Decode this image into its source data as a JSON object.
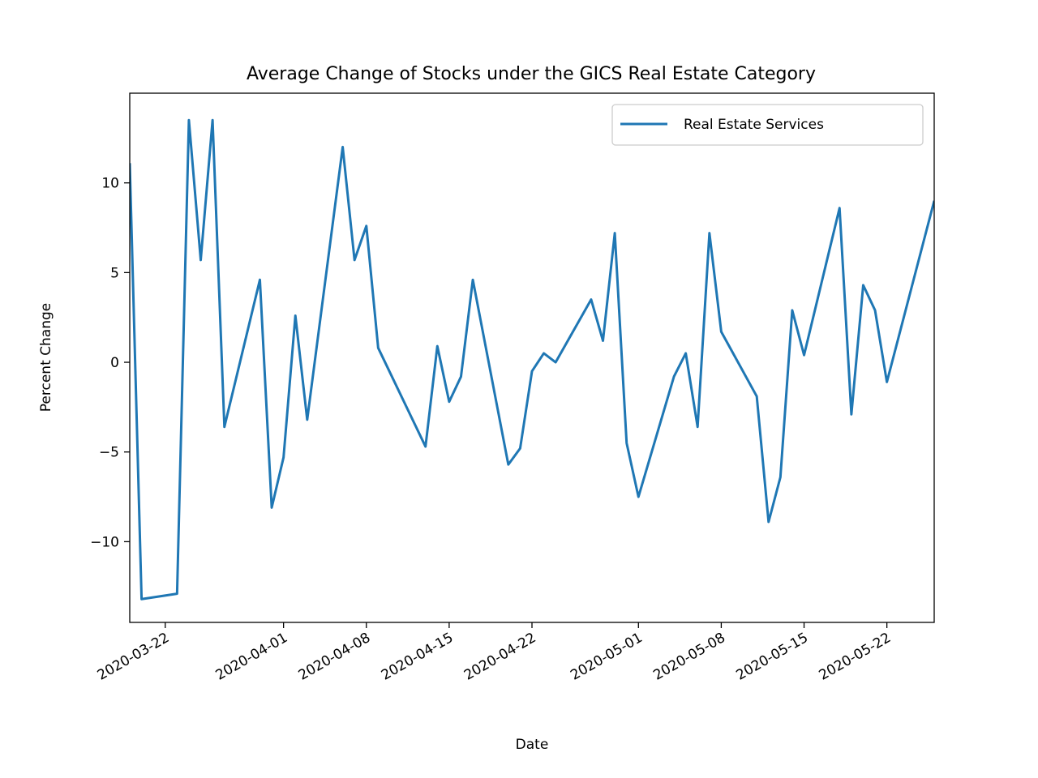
{
  "chart_data": {
    "type": "line",
    "title": "Average Change of Stocks under the GICS Real Estate Category",
    "xlabel": "Date",
    "ylabel": "Percent Change",
    "xlim": [
      "2020-03-19",
      "2020-05-26"
    ],
    "ylim": [
      -14.5,
      15
    ],
    "grid": false,
    "legend_position": "top-right",
    "x_ticks": [
      "2020-03-22",
      "2020-04-01",
      "2020-04-08",
      "2020-04-15",
      "2020-04-22",
      "2020-05-01",
      "2020-05-08",
      "2020-05-15",
      "2020-05-22"
    ],
    "y_ticks": [
      -10,
      -5,
      0,
      5,
      10
    ],
    "y_tick_labels": [
      "−10",
      "−5",
      "0",
      "5",
      "10"
    ],
    "series": [
      {
        "name": "Real Estate Services",
        "color": "#1f77b4",
        "x": [
          "2020-03-19",
          "2020-03-20",
          "2020-03-23",
          "2020-03-24",
          "2020-03-25",
          "2020-03-26",
          "2020-03-27",
          "2020-03-30",
          "2020-03-31",
          "2020-04-01",
          "2020-04-02",
          "2020-04-03",
          "2020-04-06",
          "2020-04-07",
          "2020-04-08",
          "2020-04-09",
          "2020-04-13",
          "2020-04-14",
          "2020-04-15",
          "2020-04-16",
          "2020-04-17",
          "2020-04-20",
          "2020-04-21",
          "2020-04-22",
          "2020-04-23",
          "2020-04-24",
          "2020-04-27",
          "2020-04-28",
          "2020-04-29",
          "2020-04-30",
          "2020-05-01",
          "2020-05-04",
          "2020-05-05",
          "2020-05-06",
          "2020-05-07",
          "2020-05-08",
          "2020-05-11",
          "2020-05-12",
          "2020-05-13",
          "2020-05-14",
          "2020-05-15",
          "2020-05-18",
          "2020-05-19",
          "2020-05-20",
          "2020-05-21",
          "2020-05-22",
          "2020-05-26"
        ],
        "values": [
          11.1,
          -13.2,
          -12.9,
          13.5,
          5.7,
          13.5,
          -3.6,
          4.6,
          -8.1,
          -5.3,
          2.6,
          -3.2,
          12.0,
          5.7,
          7.6,
          0.8,
          -4.7,
          0.9,
          -2.2,
          -0.8,
          4.6,
          -5.7,
          -4.8,
          -0.5,
          0.5,
          0.0,
          3.5,
          1.2,
          7.2,
          -4.5,
          -7.5,
          -0.8,
          0.5,
          -3.6,
          7.2,
          1.7,
          -1.9,
          -8.9,
          -6.4,
          2.9,
          0.4,
          8.6,
          -2.9,
          4.3,
          2.9,
          -1.1,
          9.0
        ]
      }
    ]
  }
}
